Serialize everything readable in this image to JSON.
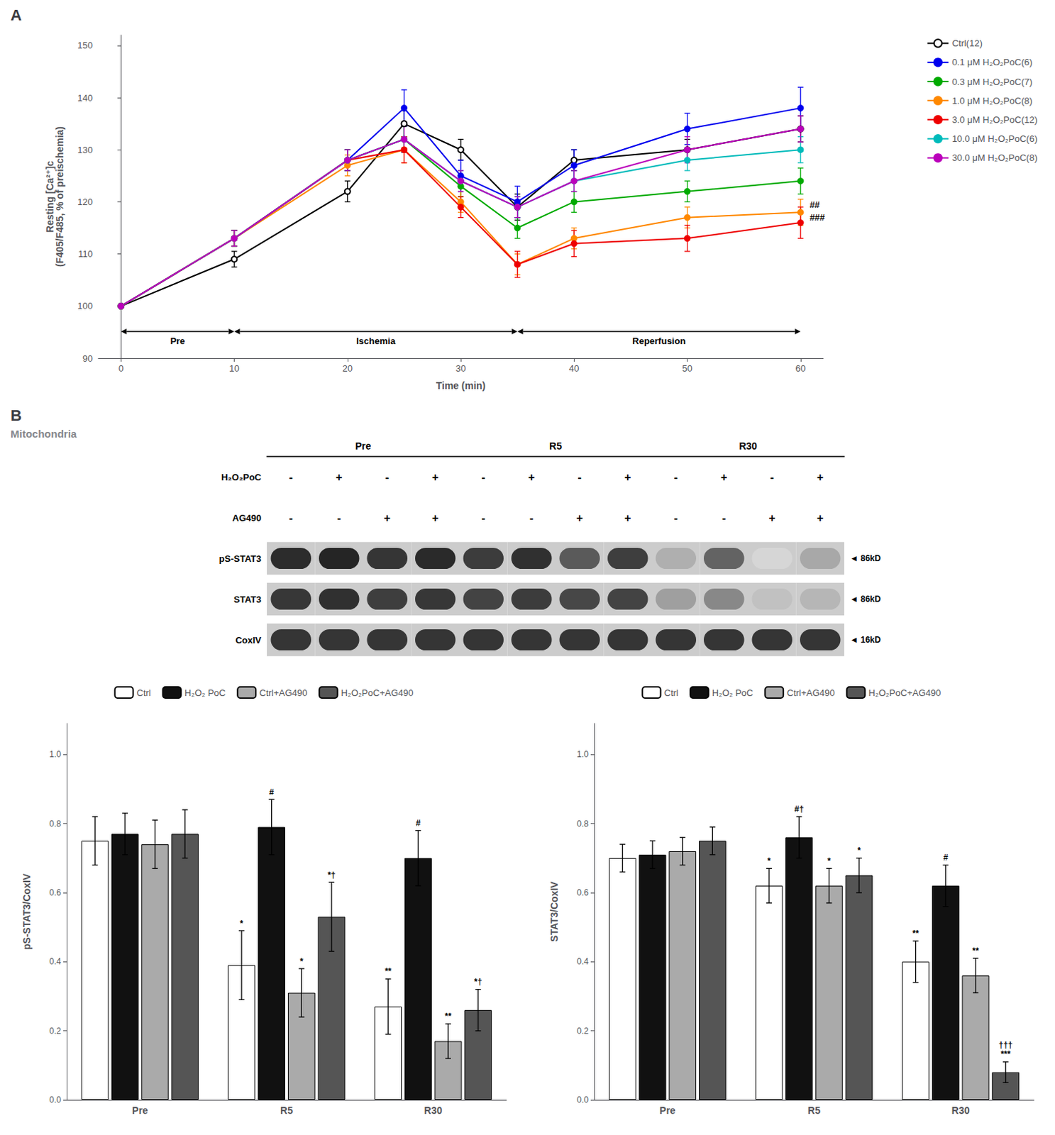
{
  "chart_data": [
    {
      "type": "line",
      "title": "A",
      "xlabel": "Time (min)",
      "ylabel": "Resting [Ca²⁺]ᴄ\n(F405/F485, % of preischemia)",
      "xlim": [
        -2,
        62
      ],
      "ylim": [
        90,
        152
      ],
      "xticks": [
        0,
        10,
        20,
        30,
        40,
        50,
        60
      ],
      "yticks": [
        90,
        100,
        110,
        120,
        130,
        140,
        150
      ],
      "grid": false,
      "legend": "right",
      "series": [
        {
          "name": "Ctrl(12)",
          "color": "#000000",
          "marker": "emptyCircle",
          "x": [
            0,
            10,
            20,
            25,
            30,
            35,
            40,
            50,
            60
          ],
          "values": [
            100,
            109,
            122,
            135,
            130,
            119,
            128,
            130,
            134
          ],
          "errors": [
            0.0,
            1.5,
            2.0,
            2.5,
            2.0,
            2.5,
            2.0,
            2.0,
            2.5
          ]
        },
        {
          "name": "0.1 μM H₂O₂PoC(6)",
          "color": "#0000EE",
          "marker": "circle",
          "x": [
            0,
            10,
            20,
            25,
            30,
            35,
            40,
            50,
            60
          ],
          "values": [
            100,
            113,
            128,
            138,
            125,
            120,
            127,
            134,
            138
          ],
          "errors": [
            0.0,
            1.5,
            2.0,
            3.5,
            3.0,
            3.0,
            3.0,
            3.0,
            4.0
          ]
        },
        {
          "name": "0.3 μM H₂O₂PoC(7)",
          "color": "#00AA00",
          "marker": "circle",
          "x": [
            0,
            10,
            20,
            25,
            30,
            35,
            40,
            50,
            60
          ],
          "values": [
            100,
            113,
            128,
            132,
            123,
            115,
            120,
            122,
            124
          ],
          "errors": [
            0.0,
            1.5,
            2.0,
            2.5,
            2.0,
            2.0,
            2.0,
            2.0,
            2.5
          ]
        },
        {
          "name": "1.0 μM H₂O₂PoC(8)",
          "color": "#FF8800",
          "marker": "circle",
          "x": [
            0,
            10,
            20,
            25,
            30,
            35,
            40,
            50,
            60
          ],
          "values": [
            100,
            113,
            127,
            130,
            120,
            108,
            113,
            117,
            118
          ],
          "errors": [
            0.0,
            1.5,
            2.0,
            2.5,
            2.0,
            2.0,
            2.0,
            2.0,
            2.5
          ]
        },
        {
          "name": "3.0 μM H₂O₂PoC(12)",
          "color": "#EE0000",
          "marker": "circle",
          "x": [
            0,
            10,
            20,
            25,
            30,
            35,
            40,
            50,
            60
          ],
          "values": [
            100,
            113,
            128,
            130,
            119,
            108,
            112,
            113,
            116
          ],
          "errors": [
            0.0,
            1.5,
            2.0,
            2.5,
            2.0,
            2.5,
            2.5,
            2.5,
            3.0
          ]
        },
        {
          "name": "10.0 μM H₂O₂PoC(6)",
          "color": "#00BBBB",
          "marker": "circle",
          "x": [
            0,
            10,
            20,
            25,
            30,
            35,
            40,
            50,
            60
          ],
          "values": [
            100,
            113,
            128,
            132,
            124,
            119,
            124,
            128,
            130
          ],
          "errors": [
            0.0,
            1.5,
            2.0,
            2.5,
            2.0,
            2.0,
            2.0,
            2.0,
            2.5
          ]
        },
        {
          "name": "30.0 μM H₂O₂PoC(8)",
          "color": "#BB00BB",
          "marker": "circle",
          "x": [
            0,
            10,
            20,
            25,
            30,
            35,
            40,
            50,
            60
          ],
          "values": [
            100,
            113,
            128,
            132,
            124,
            119,
            124,
            130,
            134
          ],
          "errors": [
            0.0,
            1.5,
            2.0,
            2.5,
            2.0,
            2.0,
            2.0,
            2.5,
            2.5
          ]
        }
      ],
      "annotations": [
        {
          "text": "Pre",
          "x": [
            0,
            10
          ]
        },
        {
          "text": "Ischemia",
          "x": [
            10,
            35
          ]
        },
        {
          "text": "Reperfusion",
          "x": [
            35,
            60
          ]
        },
        {
          "text": "##",
          "x": 60.8,
          "y": 119.5
        },
        {
          "text": "###",
          "x": 60.8,
          "y": 117.0
        }
      ]
    },
    {
      "type": "heatmap",
      "title": "B",
      "subtitle": "Mitochondria",
      "groups": [
        "Pre",
        "R5",
        "R30"
      ],
      "treatments": [
        {
          "name": "H₂O₂PoC",
          "values": [
            "-",
            "+",
            "-",
            "+",
            "-",
            "+",
            "-",
            "+",
            "-",
            "+",
            "-",
            "+"
          ]
        },
        {
          "name": "AG490",
          "values": [
            "-",
            "-",
            "+",
            "+",
            "-",
            "-",
            "+",
            "+",
            "-",
            "-",
            "+",
            "+"
          ]
        }
      ],
      "series": [
        {
          "name": "pS-STAT3",
          "kd_label": "◄ 86kD",
          "values": [
            0.92,
            0.95,
            0.88,
            0.93,
            0.85,
            0.9,
            0.72,
            0.84,
            0.35,
            0.68,
            0.18,
            0.38
          ]
        },
        {
          "name": "STAT3",
          "kd_label": "◄ 86kD",
          "values": [
            0.87,
            0.9,
            0.84,
            0.87,
            0.82,
            0.85,
            0.8,
            0.82,
            0.42,
            0.52,
            0.27,
            0.32
          ]
        },
        {
          "name": "CoxIV",
          "kd_label": "◄ 16kD",
          "values": [
            0.88,
            0.88,
            0.88,
            0.88,
            0.88,
            0.88,
            0.88,
            0.88,
            0.88,
            0.88,
            0.88,
            0.88
          ]
        }
      ]
    },
    {
      "type": "bar",
      "ylabel": "pS-STAT3/CoxIV",
      "categories": [
        "Pre",
        "R5",
        "R30"
      ],
      "ylim": [
        0.0,
        1.09
      ],
      "yticks": [
        {
          "value": 0.0,
          "label": "0.0"
        },
        0.2,
        0.4,
        0.6,
        0.8,
        {
          "value": 1.0,
          "label": "1.0"
        }
      ],
      "grid": false,
      "legend": "top",
      "series": [
        {
          "name": "Ctrl",
          "color": "#FFFFFF",
          "values": [
            0.75,
            0.39,
            0.27
          ],
          "errors": [
            0.07,
            0.1,
            0.08
          ],
          "annotations": [
            null,
            "*",
            "**"
          ]
        },
        {
          "name": "H₂O₂ PoC",
          "color": "#111111",
          "values": [
            0.77,
            0.79,
            0.7
          ],
          "errors": [
            0.06,
            0.08,
            0.08
          ],
          "annotations": [
            null,
            "#",
            "#"
          ]
        },
        {
          "name": "Ctrl+AG490",
          "color": "#AAAAAA",
          "values": [
            0.74,
            0.31,
            0.17
          ],
          "errors": [
            0.07,
            0.07,
            0.05
          ],
          "annotations": [
            null,
            "*",
            "**"
          ]
        },
        {
          "name": "H₂O₂PoC+AG490",
          "color": "#555555",
          "values": [
            0.77,
            0.53,
            0.26
          ],
          "errors": [
            0.07,
            0.1,
            0.06
          ],
          "annotations": [
            null,
            "*†",
            "*†"
          ]
        }
      ]
    },
    {
      "type": "bar",
      "ylabel": "STAT3/CoxIV",
      "categories": [
        "Pre",
        "R5",
        "R30"
      ],
      "ylim": [
        0.0,
        1.09
      ],
      "yticks": [
        {
          "value": 0.0,
          "label": "0.0"
        },
        0.2,
        0.4,
        0.6,
        0.8,
        {
          "value": 1.0,
          "label": "1.0"
        }
      ],
      "grid": false,
      "legend": "top",
      "series": [
        {
          "name": "Ctrl",
          "color": "#FFFFFF",
          "values": [
            0.7,
            0.62,
            0.4
          ],
          "errors": [
            0.04,
            0.05,
            0.06
          ],
          "annotations": [
            null,
            "*",
            "**"
          ]
        },
        {
          "name": "H₂O₂ PoC",
          "color": "#111111",
          "values": [
            0.71,
            0.76,
            0.62
          ],
          "errors": [
            0.04,
            0.06,
            0.06
          ],
          "annotations": [
            null,
            "#†",
            "#"
          ]
        },
        {
          "name": "Ctrl+AG490",
          "color": "#AAAAAA",
          "values": [
            0.72,
            0.62,
            0.36
          ],
          "errors": [
            0.04,
            0.05,
            0.05
          ],
          "annotations": [
            null,
            "*",
            "**"
          ]
        },
        {
          "name": "H₂O₂PoC+AG490",
          "color": "#555555",
          "values": [
            0.75,
            0.65,
            0.08
          ],
          "errors": [
            0.04,
            0.05,
            0.03
          ],
          "annotations": [
            null,
            "*",
            "†††\n***"
          ]
        }
      ]
    }
  ]
}
